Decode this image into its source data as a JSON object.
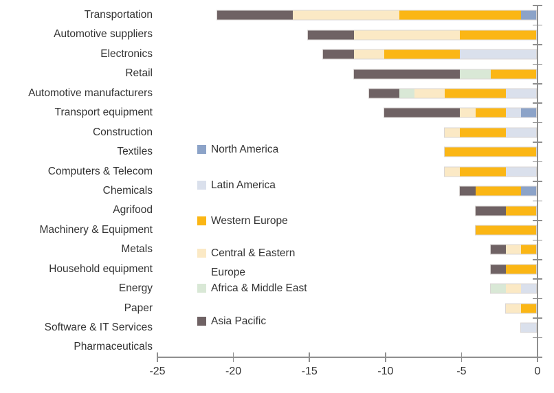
{
  "chart_data": {
    "type": "bar",
    "variant": "horizontal-stacked",
    "title": "",
    "xlabel": "",
    "ylabel": "",
    "xlim": [
      -25,
      0
    ],
    "x_ticks": [
      "-25",
      "-20",
      "-15",
      "-10",
      "-5",
      "0"
    ],
    "grid": false,
    "legend_position": "inside-left",
    "axis_color": "#8f8f8f",
    "text_color": "#333333",
    "categories": [
      "Transportation",
      "Automotive suppliers",
      "Electronics",
      "Retail",
      "Automotive manufacturers",
      "Transport equipment",
      "Construction",
      "Textiles",
      "Computers & Telecom",
      "Chemicals",
      "Agrifood",
      "Machinery & Equipment",
      "Metals",
      "Household equipment",
      "Energy",
      "Paper",
      "Software & IT Services",
      "Pharmaceuticals"
    ],
    "series": [
      {
        "name": "North America",
        "color": "#8ca3c8",
        "values": [
          -1,
          0,
          0,
          0,
          0,
          -1,
          0,
          0,
          0,
          -1,
          0,
          0,
          0,
          0,
          0,
          0,
          0,
          0
        ]
      },
      {
        "name": "Latin America",
        "color": "#dae0ec",
        "values": [
          0,
          0,
          -5,
          0,
          -2,
          -1,
          -2,
          0,
          -2,
          0,
          0,
          0,
          0,
          0,
          -1,
          0,
          -1,
          0
        ]
      },
      {
        "name": "Western Europe",
        "color": "#fbb615",
        "values": [
          -8,
          -5,
          -5,
          -3,
          -4,
          -2,
          -3,
          -6,
          -3,
          -3,
          -2,
          -4,
          -1,
          -2,
          0,
          -1,
          0,
          0
        ]
      },
      {
        "name": "Central & Eastern Europe",
        "color": "#fbe9c5",
        "values": [
          -7,
          -7,
          -2,
          0,
          -2,
          -1,
          -1,
          0,
          -1,
          0,
          0,
          0,
          -1,
          0,
          -1,
          -1,
          0,
          0
        ]
      },
      {
        "name": "Africa & Middle East",
        "color": "#d9e8d6",
        "values": [
          0,
          0,
          0,
          -2,
          -1,
          0,
          0,
          0,
          0,
          0,
          0,
          0,
          0,
          0,
          -1,
          0,
          0,
          0
        ]
      },
      {
        "name": "Asia Pacific",
        "color": "#6f6264",
        "values": [
          -5,
          -3,
          -2,
          -7,
          -2,
          -5,
          0,
          0,
          0,
          -1,
          -2,
          0,
          -1,
          -1,
          0,
          0,
          0,
          0
        ]
      }
    ],
    "stack_order_from_zero": [
      "North America",
      "Latin America",
      "Western Europe",
      "Central & Eastern Europe",
      "Africa & Middle East",
      "Asia Pacific"
    ]
  }
}
